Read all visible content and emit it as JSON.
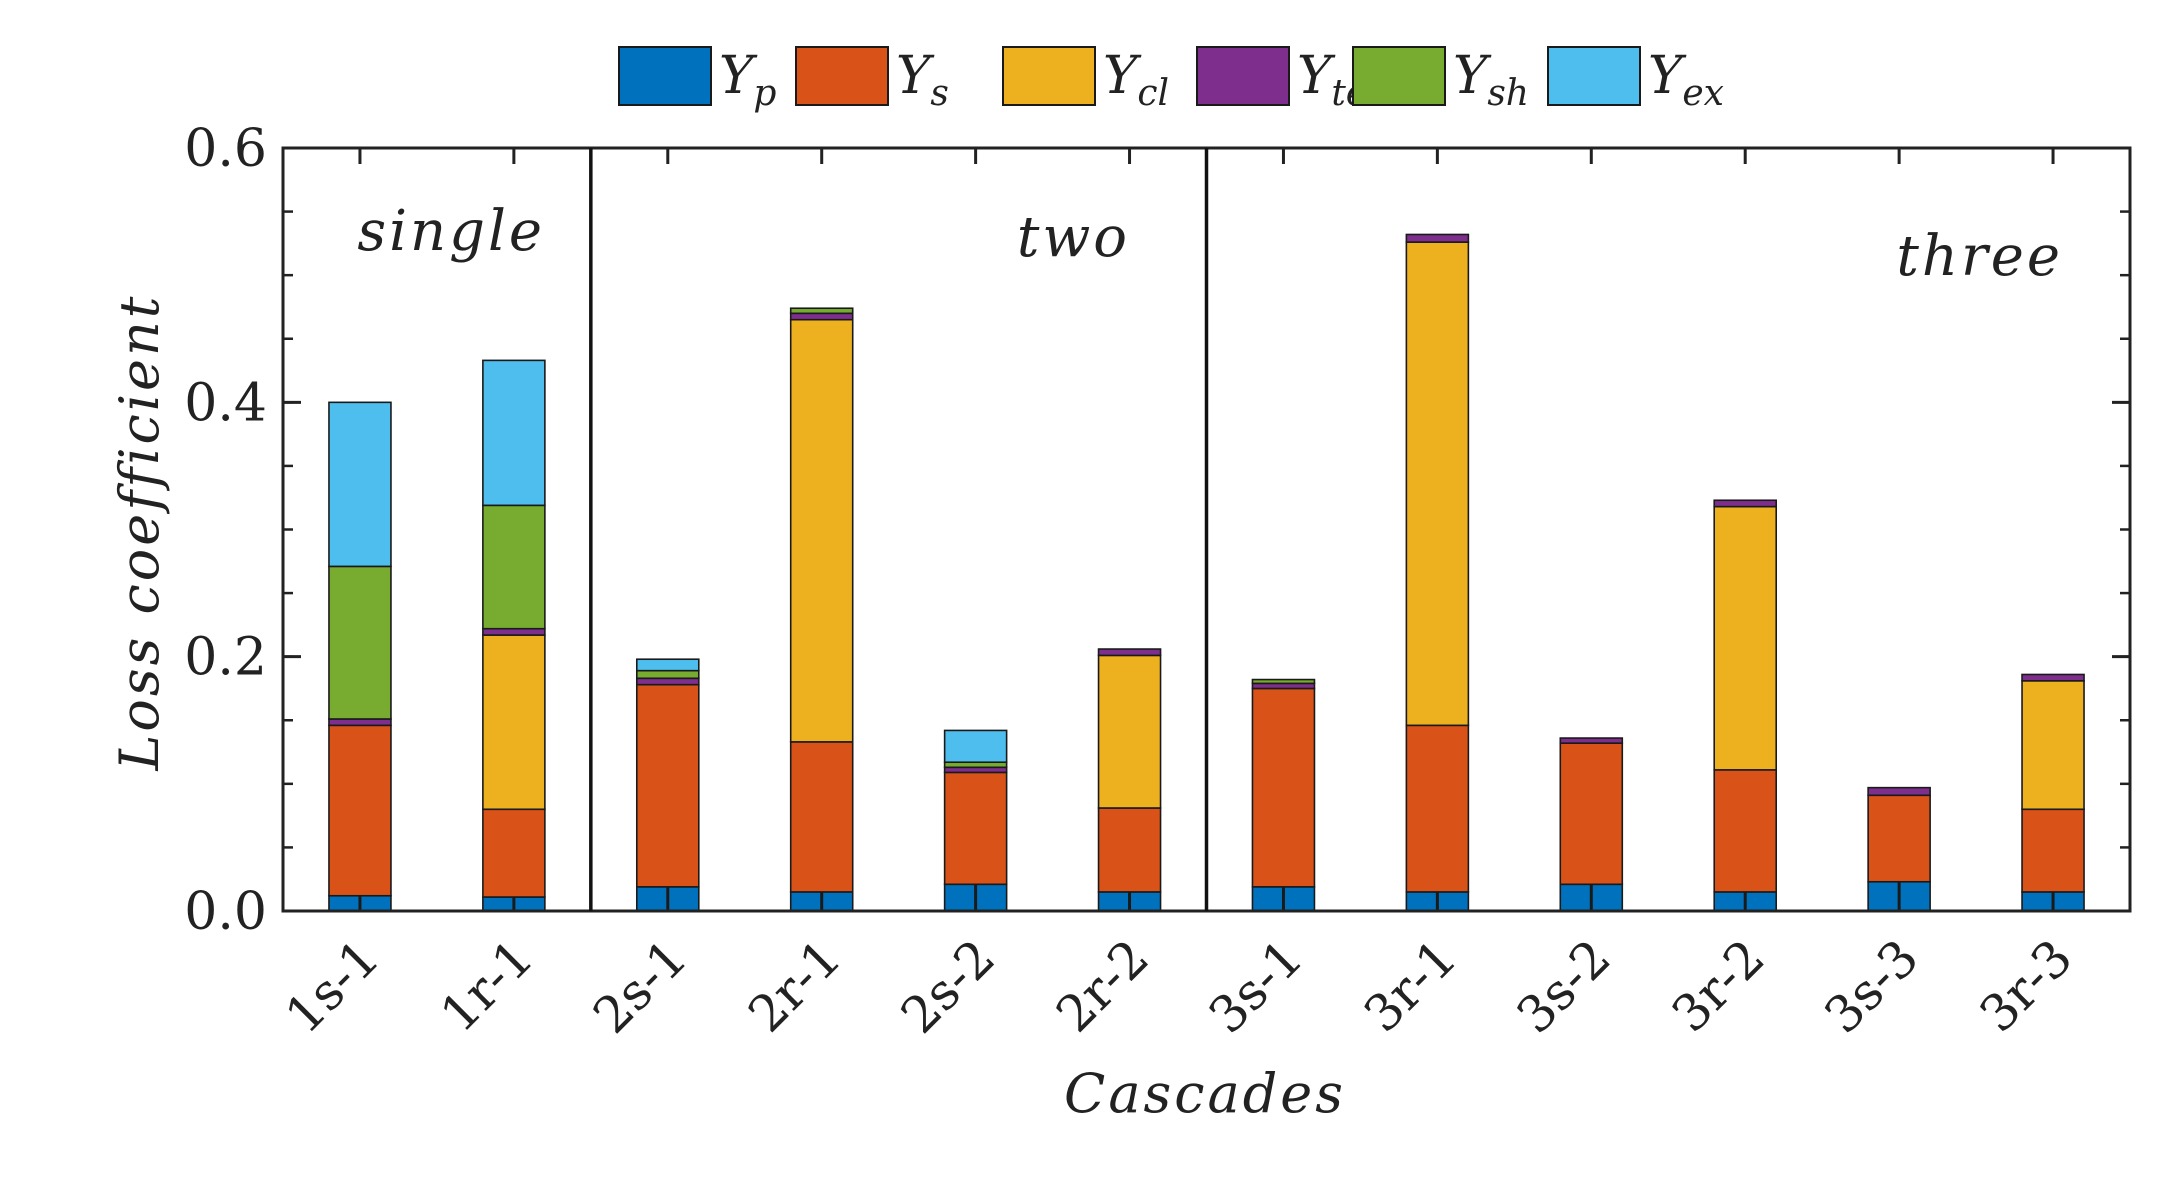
{
  "chart_data": {
    "type": "bar",
    "stacked": true,
    "title": "",
    "xlabel": "Cascades",
    "ylabel": "Loss coefficient",
    "ylim": [
      0,
      0.6
    ],
    "yticks": [
      "0.0",
      "0.2",
      "0.4",
      "0.6"
    ],
    "grid": false,
    "legend_position": "top-center",
    "categories": [
      "1s-1",
      "1r-1",
      "2s-1",
      "2r-1",
      "2s-2",
      "2r-2",
      "3s-1",
      "3r-1",
      "3s-2",
      "3r-2",
      "3s-3",
      "3r-3"
    ],
    "groups": [
      {
        "label": "single",
        "start": 0,
        "end": 1
      },
      {
        "label": "two",
        "start": 2,
        "end": 5
      },
      {
        "label": "three",
        "start": 6,
        "end": 11
      }
    ],
    "series": [
      {
        "name": "Y",
        "subscript": "p",
        "color": "#0072BD",
        "values": [
          0.012,
          0.011,
          0.019,
          0.015,
          0.021,
          0.015,
          0.019,
          0.015,
          0.021,
          0.015,
          0.023,
          0.015
        ]
      },
      {
        "name": "Y",
        "subscript": "s",
        "color": "#D95319",
        "values": [
          0.134,
          0.069,
          0.159,
          0.118,
          0.088,
          0.066,
          0.156,
          0.131,
          0.111,
          0.096,
          0.068,
          0.065
        ]
      },
      {
        "name": "Y",
        "subscript": "cl",
        "color": "#EDB120",
        "values": [
          0,
          0.137,
          0,
          0.332,
          0,
          0.12,
          0,
          0.38,
          0,
          0.207,
          0,
          0.101
        ]
      },
      {
        "name": "Y",
        "subscript": "te",
        "color": "#7E2F8E",
        "values": [
          0.005,
          0.005,
          0.005,
          0.005,
          0.004,
          0.005,
          0.004,
          0.006,
          0.004,
          0.005,
          0.006,
          0.005
        ]
      },
      {
        "name": "Y",
        "subscript": "sh",
        "color": "#77AC30",
        "values": [
          0.12,
          0.097,
          0.006,
          0.004,
          0.004,
          0,
          0.003,
          0,
          0,
          0,
          0,
          0
        ]
      },
      {
        "name": "Y",
        "subscript": "ex",
        "color": "#4DBEEE",
        "values": [
          0.129,
          0.114,
          0.009,
          0,
          0.025,
          0,
          0,
          0,
          0,
          0,
          0,
          0
        ]
      }
    ]
  }
}
